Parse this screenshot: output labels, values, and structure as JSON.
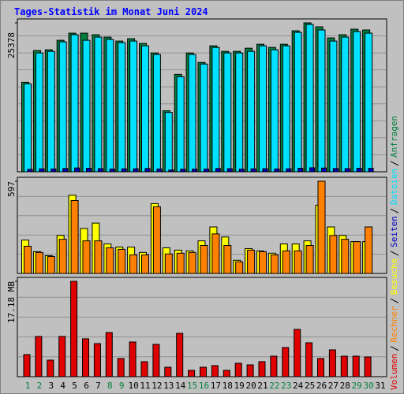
{
  "title": "Tages-Statistik im Monat Juni 2024",
  "chart_data": [
    {
      "type": "bar",
      "series": [
        {
          "name": "Anfragen",
          "color": "#008040",
          "values": [
            15254,
            20654,
            20789,
            22409,
            23624,
            23624,
            23354,
            22949,
            22274,
            22679,
            21869,
            20249,
            10395,
            16604,
            20249,
            18629,
            21464,
            20519,
            20519,
            21059,
            21734,
            21194,
            21734,
            24029,
            25378,
            24704,
            22814,
            23354,
            24299,
            24164,
            null
          ]
        },
        {
          "name": "Dateien",
          "color": "#00e0ff",
          "values": [
            14985,
            20249,
            20519,
            22139,
            23354,
            22409,
            22949,
            22544,
            22004,
            22274,
            21464,
            19979,
            10125,
            16200,
            19979,
            18359,
            21194,
            20249,
            20249,
            20519,
            21464,
            20789,
            21464,
            23759,
            25108,
            24164,
            22274,
            22949,
            23894,
            23624,
            null
          ]
        },
        {
          "name": "Seiten",
          "color": "#0000c0",
          "values": [
            420,
            510,
            480,
            560,
            650,
            600,
            540,
            470,
            500,
            520,
            560,
            480,
            300,
            430,
            450,
            470,
            560,
            530,
            460,
            500,
            520,
            480,
            510,
            600,
            680,
            640,
            560,
            540,
            600,
            590,
            null
          ]
        }
      ],
      "ylim": [
        0,
        25378
      ],
      "yticks": [
        25378
      ]
    },
    {
      "type": "bar",
      "series": [
        {
          "name": "Besuche",
          "color": "#ffff00",
          "values": [
            216,
            141,
            115,
            246,
            507,
            291,
            326,
            191,
            171,
            171,
            136,
            452,
            166,
            151,
            146,
            211,
            301,
            236,
            85,
            161,
            146,
            131,
            191,
            191,
            211,
            442,
            301,
            246,
            206,
            206,
            null
          ]
        },
        {
          "name": "Rechner",
          "color": "#ff8000",
          "values": [
            176,
            136,
            110,
            221,
            472,
            211,
            211,
            166,
            156,
            120,
            120,
            432,
            126,
            131,
            136,
            181,
            256,
            181,
            75,
            151,
            141,
            120,
            146,
            146,
            181,
            597,
            246,
            221,
            206,
            301,
            null
          ]
        }
      ],
      "ylim": [
        0,
        597
      ],
      "yticks": [
        597
      ]
    },
    {
      "type": "bar",
      "categories": [
        "1",
        "2",
        "3",
        "4",
        "5",
        "6",
        "7",
        "8",
        "9",
        "10",
        "11",
        "12",
        "13",
        "14",
        "15",
        "16",
        "17",
        "18",
        "19",
        "20",
        "21",
        "22",
        "23",
        "24",
        "25",
        "26",
        "27",
        "28",
        "29",
        "30",
        "31"
      ],
      "category_colors": [
        "#008040",
        "#008040",
        "#000000",
        "#000000",
        "#000000",
        "#000000",
        "#000000",
        "#008040",
        "#008040",
        "#000000",
        "#000000",
        "#000000",
        "#000000",
        "#000000",
        "#008040",
        "#008040",
        "#000000",
        "#000000",
        "#000000",
        "#000000",
        "#000000",
        "#008040",
        "#008040",
        "#000000",
        "#000000",
        "#000000",
        "#000000",
        "#000000",
        "#008040",
        "#008040",
        "#000000"
      ],
      "series": [
        {
          "name": "Volumen",
          "color": "#e00000",
          "values": [
            3.98,
            7.24,
            2.98,
            7.24,
            17.18,
            6.82,
            5.96,
            7.95,
            3.27,
            6.25,
            2.7,
            5.82,
            1.7,
            7.81,
            1.14,
            1.7,
            1.99,
            1.14,
            2.41,
            2.13,
            2.7,
            3.69,
            5.25,
            8.52,
            6.11,
            3.27,
            4.83,
            3.69,
            3.69,
            3.55,
            null
          ]
        }
      ],
      "ylim": [
        0,
        17.18
      ],
      "yticks": [
        {
          "value": 17.18,
          "label": "17.18 MB"
        }
      ]
    }
  ]
}
